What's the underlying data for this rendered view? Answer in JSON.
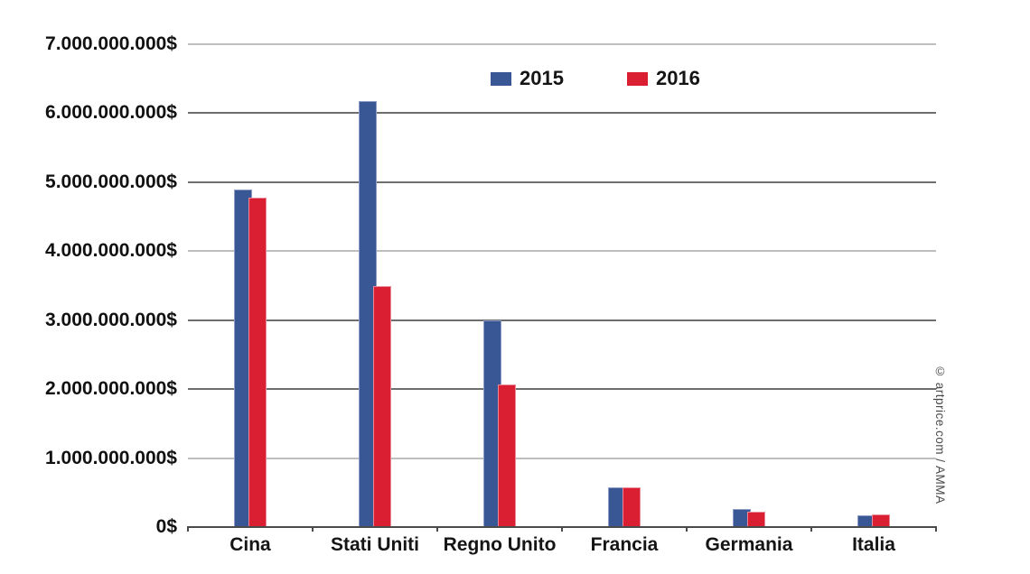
{
  "chart_data": {
    "type": "bar",
    "title": "",
    "categories": [
      "Cina",
      "Stati Uniti",
      "Regno Unito",
      "Francia",
      "Germania",
      "Italia"
    ],
    "series": [
      {
        "name": "2015",
        "color": "#3A5795",
        "border_color": "#8C9CC6",
        "values": [
          4900000000,
          6170000000,
          3000000000,
          580000000,
          260000000,
          165000000
        ]
      },
      {
        "name": "2016",
        "color": "#DA1F33",
        "border_color": "#EA8A99",
        "values": [
          4780000000,
          3500000000,
          2070000000,
          580000000,
          220000000,
          180000000
        ]
      }
    ],
    "xlabel": "",
    "ylabel": "",
    "y_axis": {
      "min": 0,
      "max": 7000000000,
      "step": 1000000000,
      "tick_labels": [
        "0$",
        "1.000.000.000$",
        "2.000.000.000$",
        "3.000.000.000$",
        "4.000.000.000$",
        "5.000.000.000$",
        "6.000.000.000$",
        "7.000.000.000$"
      ]
    },
    "grid": true,
    "gridline_color": "#6e6e6e",
    "axis_color": "#4a4a4a",
    "legend_position": "top-center"
  },
  "legend": {
    "items": [
      {
        "label": "2015",
        "color": "#3A5795"
      },
      {
        "label": "2016",
        "color": "#DA1F33"
      }
    ]
  },
  "watermark": {
    "text": "© artprice.com / AMMA"
  }
}
